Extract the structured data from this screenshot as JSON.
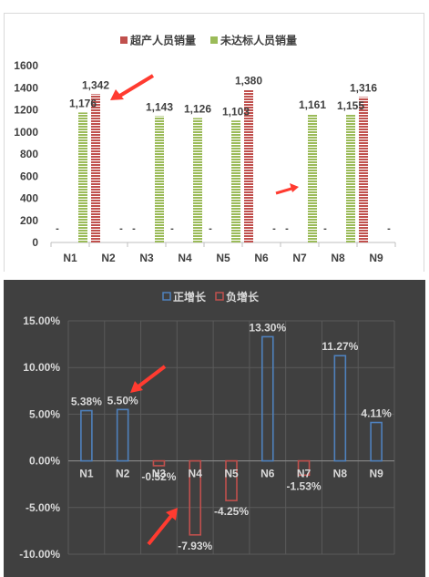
{
  "chart_data": [
    {
      "type": "bar",
      "categories": [
        "N1",
        "N2",
        "N3",
        "N4",
        "N5",
        "N6",
        "N7",
        "N8",
        "N9"
      ],
      "series": [
        {
          "name": "超产人员销量",
          "values": [
            null,
            1342,
            null,
            null,
            null,
            1380,
            null,
            null,
            1316
          ],
          "labels": [
            "-",
            "1,342",
            "-",
            "-",
            "-",
            "1,380",
            "-",
            "-",
            "1,316"
          ],
          "color": "#c0504d"
        },
        {
          "name": "未达标人员销量",
          "values": [
            1176,
            null,
            1143,
            1126,
            1103,
            null,
            1161,
            1155,
            null
          ],
          "labels": [
            "1,176",
            "-",
            "1,143",
            "1,126",
            "1,103",
            "-",
            "1,161",
            "1,155",
            "-"
          ],
          "color": "#9bbb59"
        }
      ],
      "ylim": [
        0,
        1600
      ],
      "yticks": [
        "0",
        "200",
        "400",
        "600",
        "800",
        "1000",
        "1200",
        "1400",
        "1600"
      ],
      "legend": "top",
      "grid": false
    },
    {
      "type": "bar",
      "categories": [
        "N1",
        "N2",
        "N3",
        "N4",
        "N5",
        "N6",
        "N7",
        "N8",
        "N9"
      ],
      "values": [
        5.38,
        5.5,
        -0.52,
        -7.93,
        -4.25,
        13.3,
        -1.53,
        11.27,
        4.11
      ],
      "labels": [
        "5.38%",
        "5.50%",
        "-0.52%",
        "-7.93%",
        "-4.25%",
        "13.30%",
        "-1.53%",
        "11.27%",
        "4.11%"
      ],
      "series": [
        {
          "name": "正增长",
          "color": "#4f81bd"
        },
        {
          "name": "负增长",
          "color": "#c0504d"
        }
      ],
      "ylim": [
        -10,
        15
      ],
      "yticks": [
        "-10.00%",
        "-5.00%",
        "0.00%",
        "5.00%",
        "10.00%",
        "15.00%"
      ],
      "legend": "top",
      "grid": true,
      "background": "#404040"
    }
  ]
}
